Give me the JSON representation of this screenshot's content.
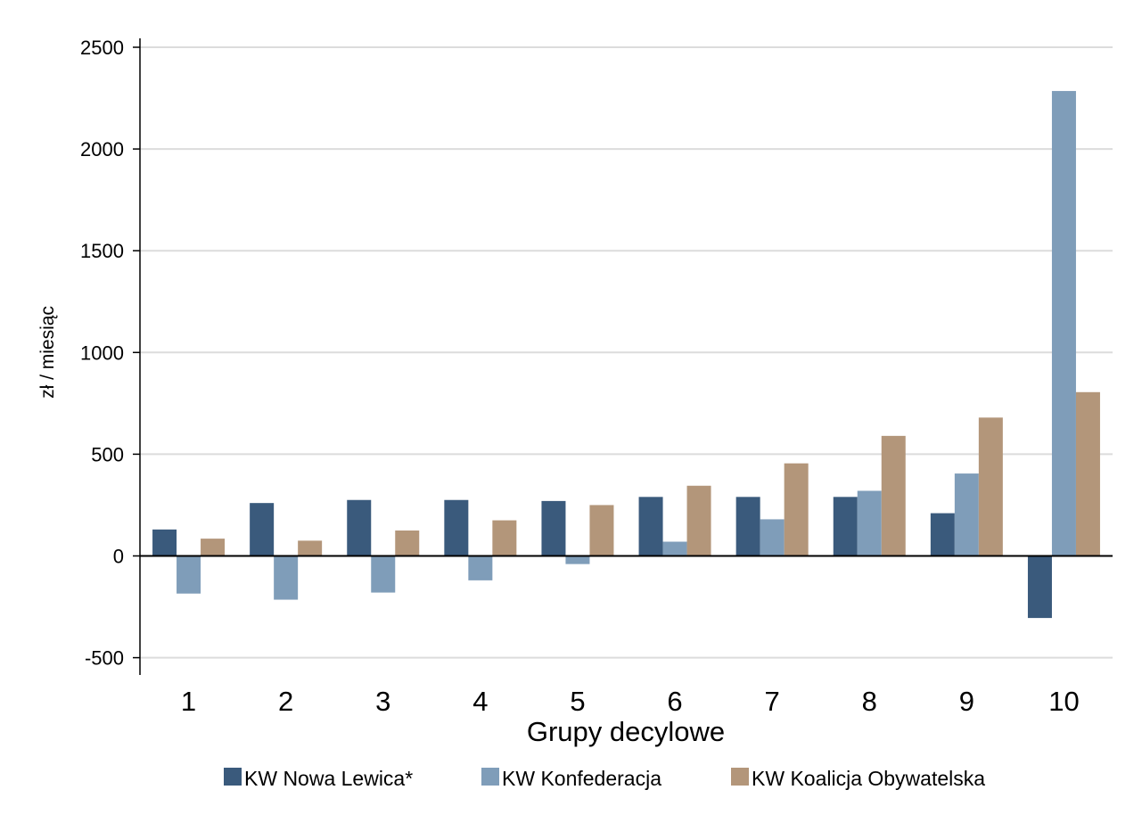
{
  "chart_data": {
    "type": "bar",
    "title": "",
    "xlabel": "Grupy decylowe",
    "ylabel": "zł / miesiąc",
    "categories": [
      "1",
      "2",
      "3",
      "4",
      "5",
      "6",
      "7",
      "8",
      "9",
      "10"
    ],
    "ylim": [
      -590,
      2500
    ],
    "yticks": [
      -500,
      0,
      500,
      1000,
      1500,
      2000,
      2500
    ],
    "ytick_labels": [
      "-500",
      "0",
      "500",
      "1000",
      "1500",
      "2000",
      "2500"
    ],
    "grid": true,
    "legend_position": "bottom",
    "series": [
      {
        "name": "KW Nowa Lewica*",
        "color": "#3a5a7c",
        "values": [
          130,
          260,
          275,
          275,
          270,
          290,
          290,
          290,
          210,
          -305
        ]
      },
      {
        "name": "KW Konfederacja",
        "color": "#7f9db9",
        "values": [
          -185,
          -215,
          -180,
          -120,
          -40,
          70,
          180,
          320,
          405,
          2285
        ]
      },
      {
        "name": "KW Koalicja Obywatelska",
        "color": "#b3967a",
        "values": [
          85,
          75,
          125,
          175,
          250,
          345,
          455,
          590,
          680,
          805
        ]
      }
    ]
  }
}
